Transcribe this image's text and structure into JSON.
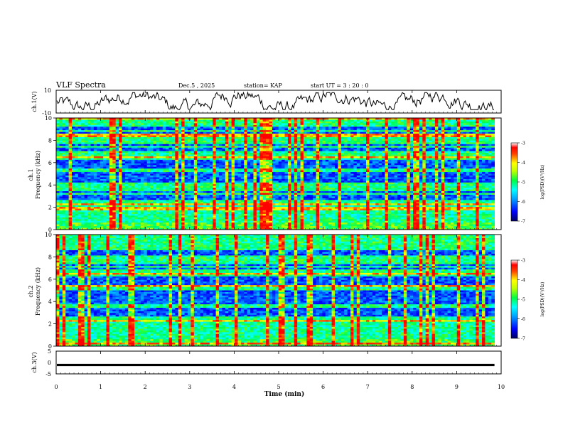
{
  "header": {
    "title": "VLF Spectra",
    "date": "Dec.5 , 2025",
    "station": "station= KAP",
    "start": "start  UT =   3 : 20 : 0"
  },
  "chart_data": [
    {
      "id": "ch1-waveform",
      "type": "line",
      "ylabel": "ch.1(V)",
      "ylim": [
        -10,
        10
      ],
      "yticks": [
        "10",
        "-10"
      ],
      "xlim": [
        0,
        10
      ],
      "series_note": "noisy waveform oscillating roughly between -7 V and +8 V over 0–9.8 min"
    },
    {
      "id": "ch1-spectrogram",
      "type": "heatmap",
      "ylabel": "ch.1",
      "ylabel2": "Frequency (kHz)",
      "ylim": [
        0,
        10
      ],
      "yticks": [
        "0",
        "2",
        "4",
        "6",
        "8",
        "10"
      ],
      "xlim": [
        0,
        10
      ],
      "data_extent_min": 9.85,
      "low_power_bands_khz": [
        [
          2.6,
          3.5
        ],
        [
          4.0,
          5.1
        ],
        [
          5.5,
          6.2
        ],
        [
          7.0,
          7.6
        ],
        [
          8.6,
          9.2
        ]
      ],
      "colorbar": {
        "label": "log(PSD)(V²/Hz)",
        "min": -7,
        "max": -3,
        "ticks": [
          "-3",
          "-4",
          "-5",
          "-6",
          "-7"
        ]
      }
    },
    {
      "id": "ch2-spectrogram",
      "type": "heatmap",
      "ylabel": "ch.2",
      "ylabel2": "Frequency (kHz)",
      "ylim": [
        0,
        10
      ],
      "yticks": [
        "0",
        "2",
        "4",
        "6",
        "8",
        "10"
      ],
      "xlim": [
        0,
        10
      ],
      "data_extent_min": 9.85,
      "low_power_bands_khz": [
        [
          2.6,
          3.4
        ],
        [
          3.8,
          5.0
        ],
        [
          5.4,
          6.2
        ],
        [
          6.8,
          7.4
        ],
        [
          8.2,
          8.8
        ]
      ],
      "colorbar": {
        "label": "log(PSD)(V²/Hz)",
        "min": -7,
        "max": -3,
        "ticks": [
          "-3",
          "-4",
          "-5",
          "-6",
          "-7"
        ]
      }
    },
    {
      "id": "ch3-waveform",
      "type": "line",
      "ylabel": "ch.3(V)",
      "ylim": [
        -5,
        5
      ],
      "yticks": [
        "5",
        "0",
        "-5"
      ],
      "xlim": [
        0,
        10
      ],
      "series_note": "dense oscillation centered near -1 V with small amplitude"
    }
  ],
  "xaxis": {
    "label": "Time (min)",
    "ticks": [
      "0",
      "1",
      "2",
      "3",
      "4",
      "5",
      "6",
      "7",
      "8",
      "9",
      "10"
    ]
  }
}
